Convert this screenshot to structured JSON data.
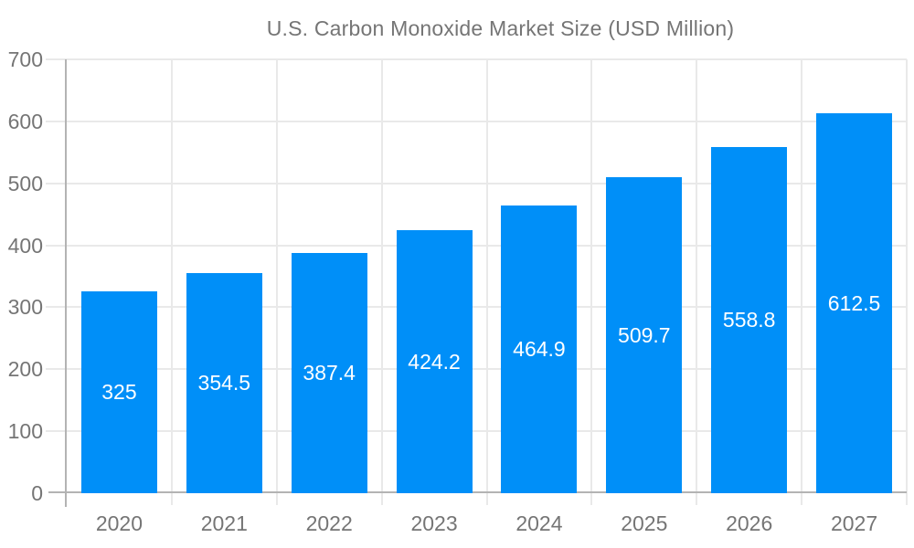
{
  "legend": {
    "label": "U.S. Carbon Monoxide Market Size (USD Million)",
    "position": "top"
  },
  "chart_data": {
    "type": "bar",
    "title": "U.S. Carbon Monoxide Market Size (USD Million)",
    "series_label": "U.S. Carbon Monoxide Market Size (USD Million)",
    "categories": [
      "2020",
      "2021",
      "2022",
      "2023",
      "2024",
      "2025",
      "2026",
      "2027"
    ],
    "values": [
      325,
      354.5,
      387.4,
      424.2,
      464.9,
      509.7,
      558.8,
      612.5
    ],
    "value_labels": [
      "325",
      "354.5",
      "387.4",
      "424.2",
      "464.9",
      "509.7",
      "558.8",
      "612.5"
    ],
    "xlabel": "",
    "ylabel": "",
    "ylim": [
      0,
      700
    ],
    "yticks": [
      0,
      100,
      200,
      300,
      400,
      500,
      600,
      700
    ],
    "grid": "horizontal-and-category-boundaries",
    "legend_position": "top",
    "colors": {
      "bar": "#008ff8",
      "axis_line": "#b3b3b3",
      "gridline": "#e9e9e9",
      "axis_text": "#757575",
      "value_text": "#ffffff",
      "background": "#ffffff"
    }
  }
}
